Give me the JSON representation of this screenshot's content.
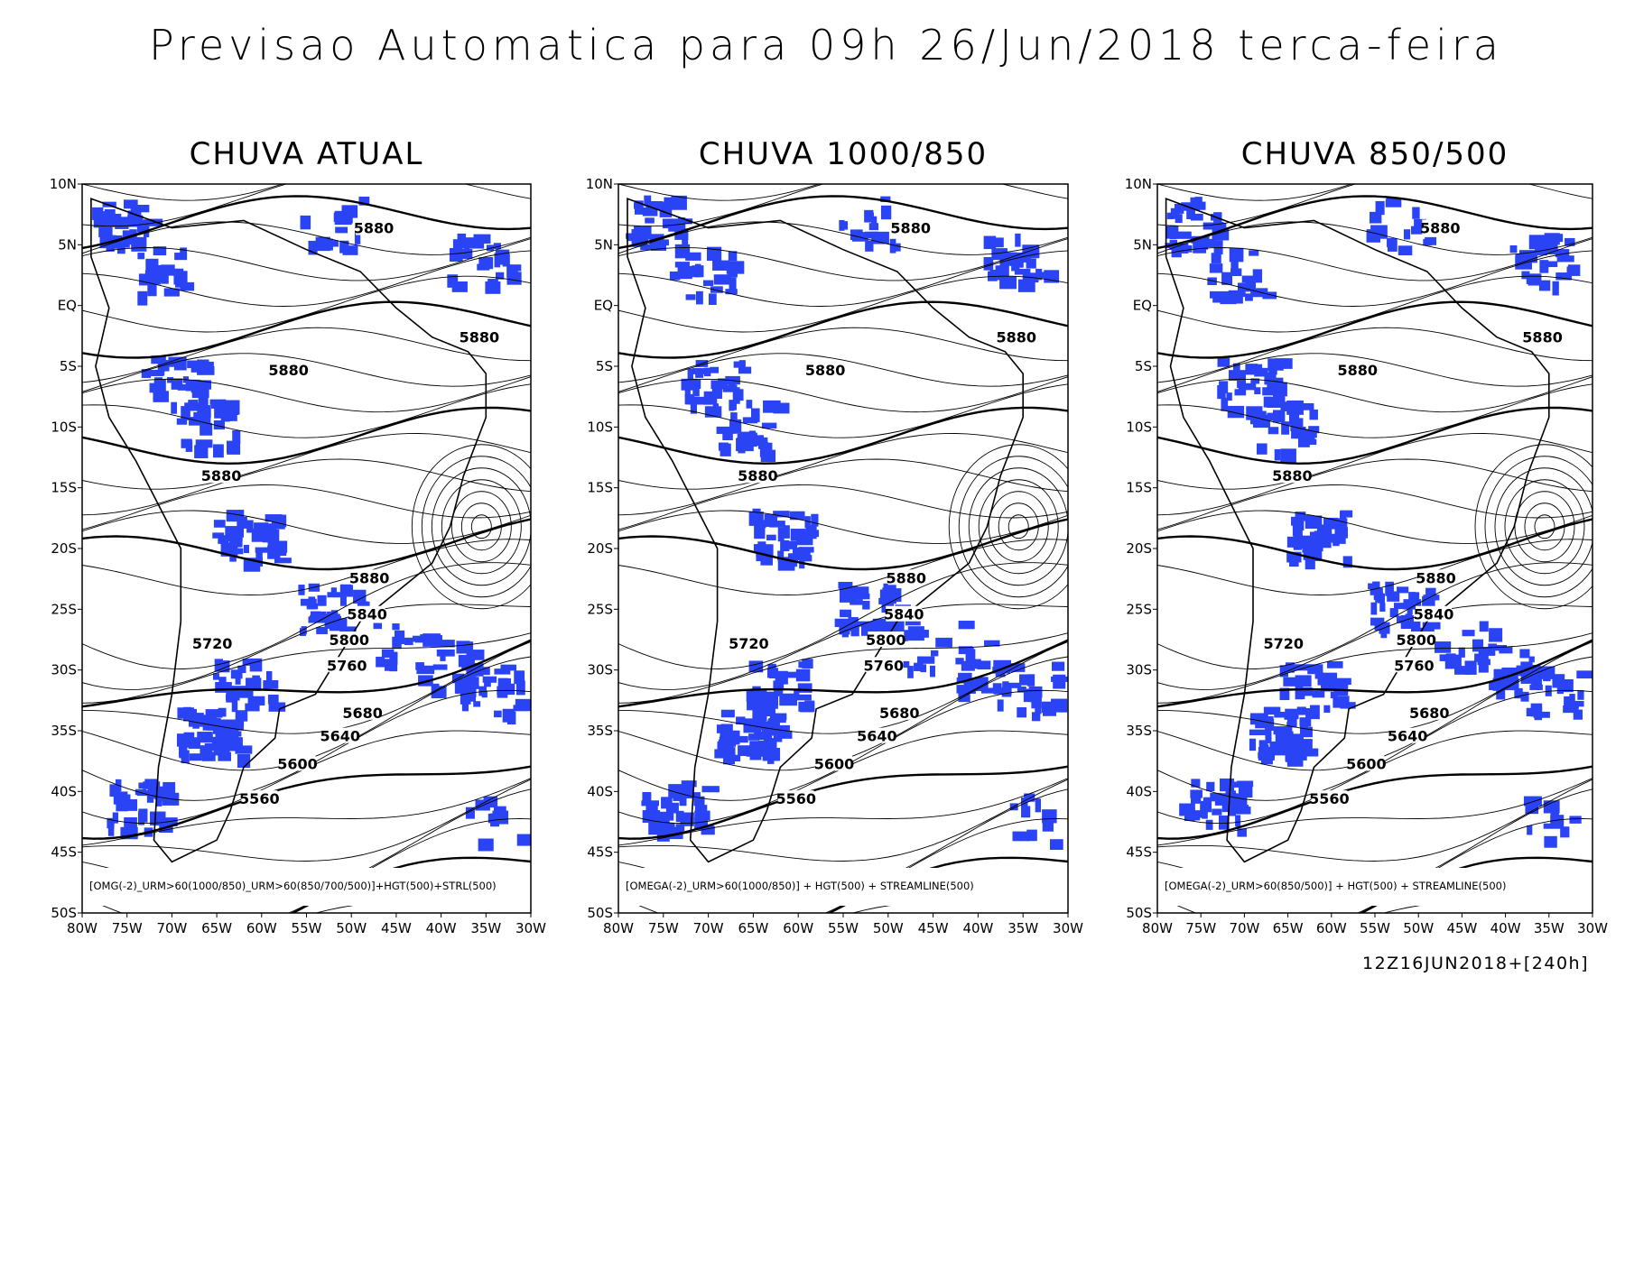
{
  "title": "Previsao Automatica para 09h 26/Jun/2018 terca-feira",
  "axes": {
    "lat_labels": [
      "10N",
      "5N",
      "EQ",
      "5S",
      "10S",
      "15S",
      "20S",
      "25S",
      "30S",
      "35S",
      "40S",
      "45S",
      "50S"
    ],
    "lon_labels": [
      "80W",
      "75W",
      "70W",
      "65W",
      "60W",
      "55W",
      "50W",
      "45W",
      "40W",
      "35W",
      "30W"
    ]
  },
  "panels": [
    {
      "title": "CHUVA ATUAL",
      "legend": "[OMG(-2)_URM>60(1000/850)_URM>60(850/700/500)]+HGT(500)+STRL(500)",
      "contour_labels": [
        5880,
        5880,
        5880,
        5880,
        5880,
        5840,
        5800,
        5760,
        5720,
        5680,
        5640,
        5600,
        5560
      ]
    },
    {
      "title": "CHUVA 1000/850",
      "legend": "[OMEGA(-2)_URM>60(1000/850)] + HGT(500) + STREAMLINE(500)",
      "contour_labels": [
        5880,
        5880,
        5880,
        5880,
        5880,
        5840,
        5800,
        5760,
        5720,
        5680,
        5640,
        5600,
        5560
      ]
    },
    {
      "title": "CHUVA 850/500",
      "legend": "[OMEGA(-2)_URM>60(850/500)] + HGT(500) + STREAMLINE(500)",
      "contour_labels": [
        5880,
        5880,
        5880,
        5880,
        5880,
        5840,
        5800,
        5760,
        5720,
        5680,
        5640,
        5600,
        5560
      ]
    }
  ],
  "footer": "12Z16JUN2018+[240h]"
}
